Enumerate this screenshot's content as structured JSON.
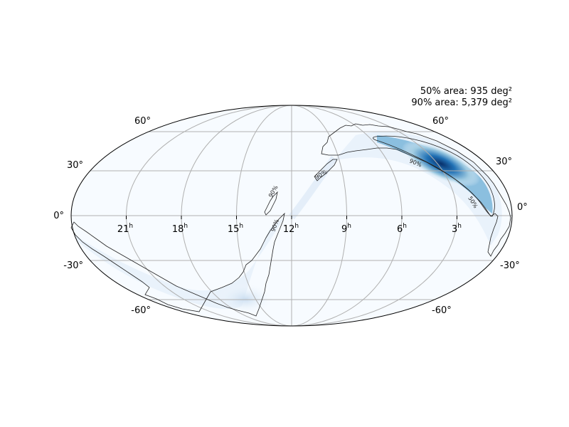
{
  "chart_data": {
    "type": "heatmap",
    "projection": "mollweide-astro-hours",
    "colormap": "Blues",
    "grid": true,
    "annotation": {
      "line1": "50% area: 935 deg²",
      "line2": "90% area: 5,379 deg²"
    },
    "credible_levels": [
      {
        "label": "50%",
        "area_deg2": 935
      },
      {
        "label": "90%",
        "area_deg2": 5379
      }
    ],
    "ra_ticks": [
      {
        "hours": 21,
        "label": "21",
        "sup": "h"
      },
      {
        "hours": 18,
        "label": "18",
        "sup": "h"
      },
      {
        "hours": 15,
        "label": "15",
        "sup": "h"
      },
      {
        "hours": 12,
        "label": "12",
        "sup": "h"
      },
      {
        "hours": 9,
        "label": "9",
        "sup": "h"
      },
      {
        "hours": 6,
        "label": "6",
        "sup": "h"
      },
      {
        "hours": 3,
        "label": "3",
        "sup": "h"
      }
    ],
    "dec_ticks": [
      {
        "deg": 60,
        "label": "60°"
      },
      {
        "deg": 30,
        "label": "30°"
      },
      {
        "deg": 0,
        "label": "0°"
      },
      {
        "deg": -30,
        "label": "-30°"
      },
      {
        "deg": -60,
        "label": "-60°"
      }
    ],
    "probability_regions": [
      {
        "name": "main-arc",
        "peak_ra_hours": 3.7,
        "peak_dec_deg": 30,
        "peak_intensity": 1.0,
        "contours": [
          "50%",
          "90%"
        ]
      },
      {
        "name": "southern-arc",
        "peak_ra_hours": 16.0,
        "peak_dec_deg": -60,
        "peak_intensity": 0.15,
        "contours": [
          "90%"
        ]
      }
    ]
  }
}
